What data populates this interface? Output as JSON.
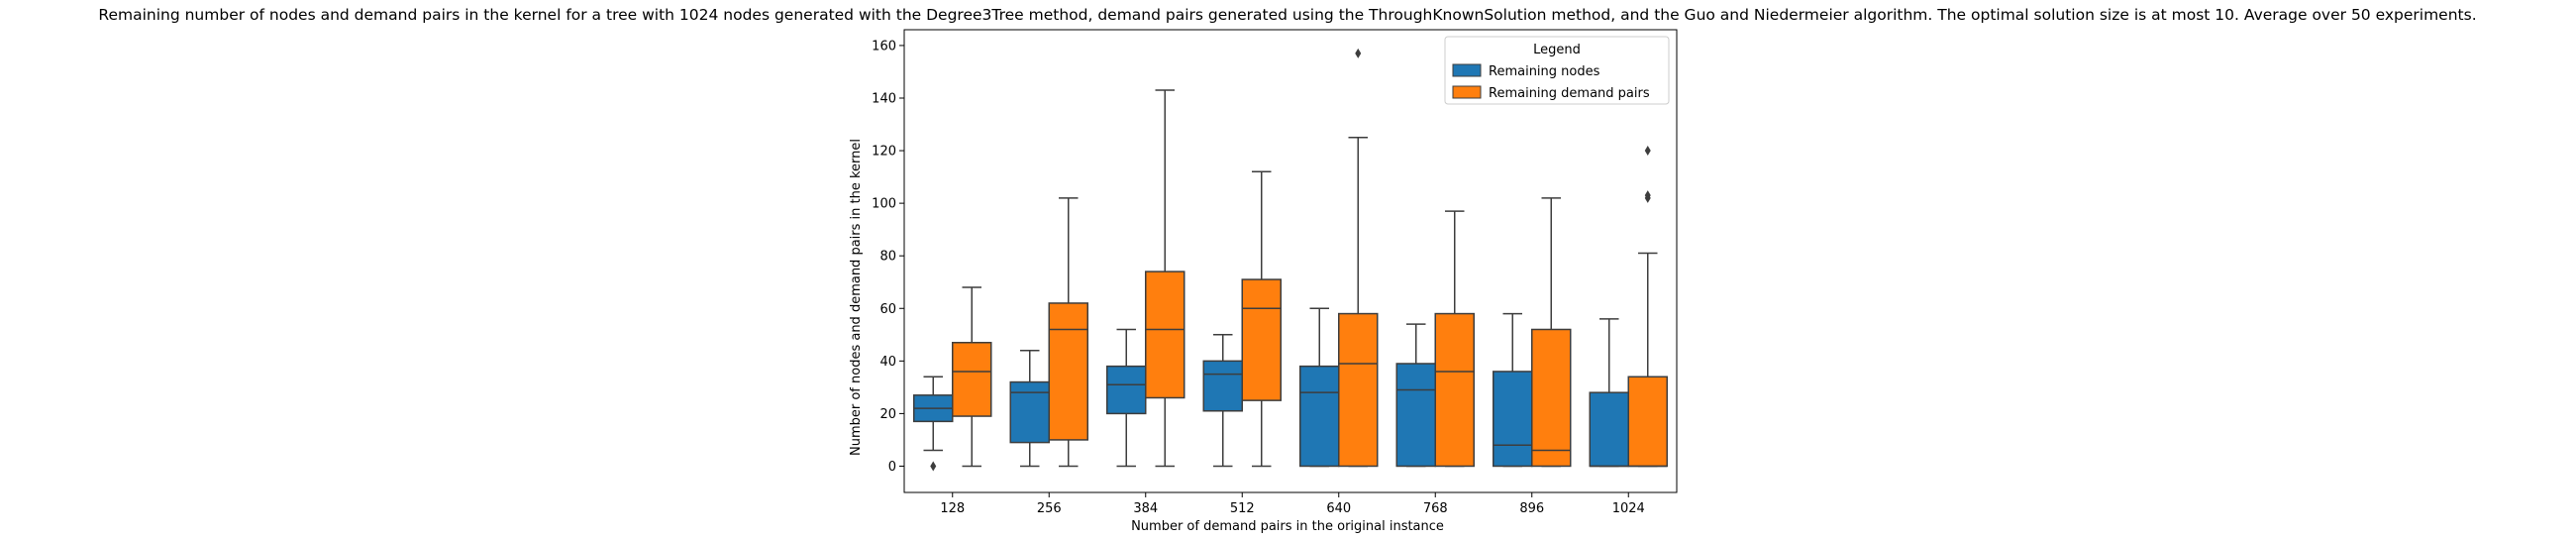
{
  "chart_data": {
    "type": "boxplot",
    "title": "Remaining number of nodes and demand pairs in the kernel for a tree with 1024 nodes generated with the Degree3Tree method, demand pairs generated using the ThroughKnownSolution method, and the Guo and Niedermeier algorithm. The optimal solution size is at most 10. Average over 50 experiments.",
    "xlabel": "Number of demand pairs in the original instance",
    "ylabel": "Number of nodes and demand pairs in the kernel",
    "categories": [
      "128",
      "256",
      "384",
      "512",
      "640",
      "768",
      "896",
      "1024"
    ],
    "yticks": [
      0,
      20,
      40,
      60,
      80,
      100,
      120,
      140,
      160
    ],
    "ylim": [
      -10,
      166
    ],
    "legend": {
      "title": "Legend",
      "position": "top-right"
    },
    "series": [
      {
        "name": "Remaining nodes",
        "color": "#1f77b4",
        "boxes": [
          {
            "whislo": 6,
            "q1": 17,
            "med": 22,
            "q3": 27,
            "whishi": 34,
            "fliers": [
              0
            ]
          },
          {
            "whislo": 0,
            "q1": 9,
            "med": 28,
            "q3": 32,
            "whishi": 44,
            "fliers": []
          },
          {
            "whislo": 0,
            "q1": 20,
            "med": 31,
            "q3": 38,
            "whishi": 52,
            "fliers": []
          },
          {
            "whislo": 0,
            "q1": 21,
            "med": 35,
            "q3": 40,
            "whishi": 50,
            "fliers": []
          },
          {
            "whislo": 0,
            "q1": 0,
            "med": 28,
            "q3": 38,
            "whishi": 60,
            "fliers": []
          },
          {
            "whislo": 0,
            "q1": 0,
            "med": 29,
            "q3": 39,
            "whishi": 54,
            "fliers": []
          },
          {
            "whislo": 0,
            "q1": 0,
            "med": 8,
            "q3": 36,
            "whishi": 58,
            "fliers": []
          },
          {
            "whislo": 0,
            "q1": 0,
            "med": 0,
            "q3": 28,
            "whishi": 56,
            "fliers": []
          }
        ]
      },
      {
        "name": "Remaining demand pairs",
        "color": "#ff7f0e",
        "boxes": [
          {
            "whislo": 0,
            "q1": 19,
            "med": 36,
            "q3": 47,
            "whishi": 68,
            "fliers": []
          },
          {
            "whislo": 0,
            "q1": 10,
            "med": 52,
            "q3": 62,
            "whishi": 102,
            "fliers": []
          },
          {
            "whislo": 0,
            "q1": 26,
            "med": 52,
            "q3": 74,
            "whishi": 143,
            "fliers": []
          },
          {
            "whislo": 0,
            "q1": 25,
            "med": 60,
            "q3": 71,
            "whishi": 112,
            "fliers": []
          },
          {
            "whislo": 0,
            "q1": 0,
            "med": 39,
            "q3": 58,
            "whishi": 125,
            "fliers": [
              157
            ]
          },
          {
            "whislo": 0,
            "q1": 0,
            "med": 36,
            "q3": 58,
            "whishi": 97,
            "fliers": []
          },
          {
            "whislo": 0,
            "q1": 0,
            "med": 6,
            "q3": 52,
            "whishi": 102,
            "fliers": []
          },
          {
            "whislo": 0,
            "q1": 0,
            "med": 0,
            "q3": 34,
            "whishi": 81,
            "fliers": [
              102,
              103,
              120
            ]
          }
        ]
      }
    ]
  }
}
